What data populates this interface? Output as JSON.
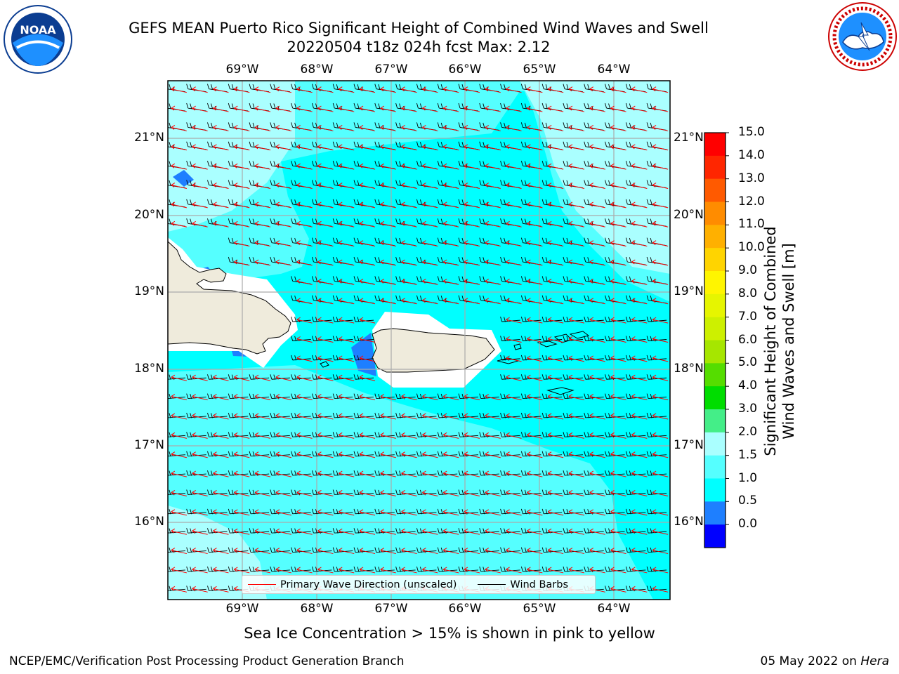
{
  "title": {
    "line1": "GEFS MEAN Puerto Rico Significant Height of Combined Wind Waves and Swell",
    "line2": "20220504 t18z 024h fcst   Max: 2.12"
  },
  "logos": {
    "left": "NOAA",
    "left_ring": "NATIONAL OCEANIC AND ATMOSPHERIC ADMINISTRATION · U.S. DEPARTMENT OF COMMERCE",
    "right_ring": "NATIONAL WEATHER SERVICE"
  },
  "axes": {
    "lon_ticks": [
      "69°W",
      "68°W",
      "67°W",
      "66°W",
      "65°W",
      "64°W"
    ],
    "lat_ticks": [
      "21°N",
      "20°N",
      "19°N",
      "18°N",
      "17°N",
      "16°N"
    ]
  },
  "legend": {
    "wave_dir": "Primary Wave Direction (unscaled)",
    "wind_barbs": "Wind Barbs",
    "wave_dir_color": "#ff0000",
    "wind_barbs_color": "#000000"
  },
  "colorbar": {
    "title_line1": "Significant Height of Combined",
    "title_line2": "Wind Waves and Swell [m]",
    "ticks": [
      "15.0",
      "14.0",
      "13.0",
      "12.0",
      "11.0",
      "10.0",
      "9.0",
      "8.0",
      "7.0",
      "6.0",
      "5.0",
      "4.0",
      "3.0",
      "2.0",
      "1.5",
      "1.0",
      "0.5",
      "0.0"
    ],
    "colors": [
      "#ff0000",
      "#ff2600",
      "#ff5a00",
      "#ff8c00",
      "#ffb000",
      "#ffd400",
      "#fff500",
      "#e6f500",
      "#cdf000",
      "#a6e600",
      "#55dd00",
      "#00dd00",
      "#44ee88",
      "#aaffff",
      "#55ffff",
      "#00ffff",
      "#1e7fff",
      "#0000ff"
    ]
  },
  "caption": "Sea Ice Concentration > 15% is shown in pink to yellow",
  "footer": {
    "left": "NCEP/EMC/Verification Post Processing Product Generation Branch",
    "right_date": "05 May 2022 on",
    "right_host": "Hera"
  }
}
